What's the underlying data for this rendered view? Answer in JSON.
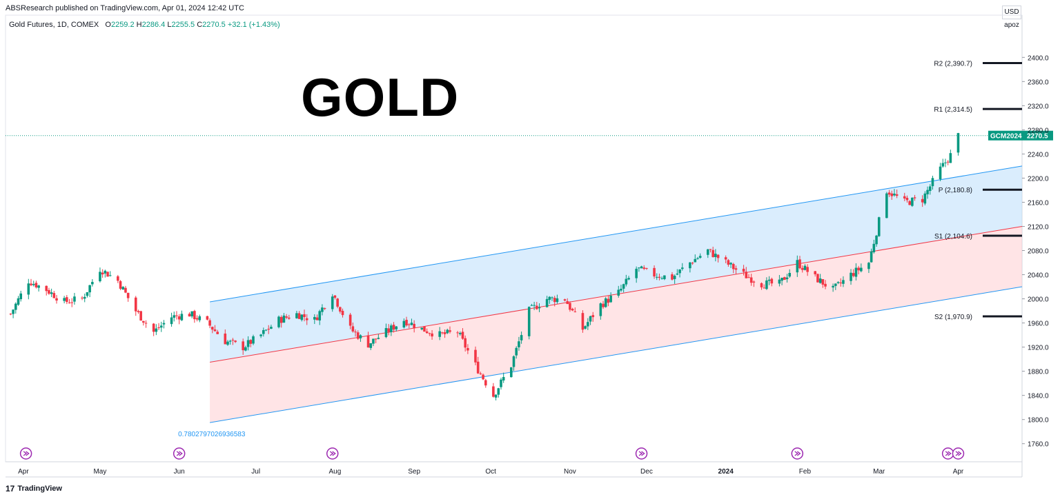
{
  "header": {
    "published": "ABSResearch published on TradingView.com, Apr 01, 2024 12:42 UTC",
    "symbol": "Gold Futures, 1D, COMEX",
    "o_label": "O",
    "o_value": "2259.2",
    "h_label": "H",
    "h_value": "2286.4",
    "l_label": "L",
    "l_value": "2255.5",
    "c_label": "C",
    "c_value": "2270.5",
    "change": "+32.1 (+1.43%)"
  },
  "overlay_title": "GOLD",
  "currency": "USD",
  "unit": "apoz",
  "footer": {
    "logo": "TradingView"
  },
  "colors": {
    "up": "#089981",
    "down": "#f23645",
    "channel_line": "#2196f3",
    "median_line": "#f23645",
    "upper_fill": "#bbdefb",
    "lower_fill": "#ffcdd2"
  },
  "chart_data": {
    "type": "candlestick",
    "symbol": "GCM2024",
    "last_price": "2270.5",
    "ylim": [
      1730,
      2470
    ],
    "y_ticks": [
      "2400.0",
      "2360.0",
      "2320.0",
      "2280.0",
      "2240.0",
      "2200.0",
      "2160.0",
      "2120.0",
      "2080.0",
      "2040.0",
      "2000.0",
      "1960.0",
      "1920.0",
      "1880.0",
      "1840.0",
      "1800.0",
      "1760.0"
    ],
    "x_range": [
      "2023-03-25",
      "2024-04-26"
    ],
    "x_ticks": [
      {
        "date": "2023-04-01",
        "label": "Apr"
      },
      {
        "date": "2023-05-01",
        "label": "May"
      },
      {
        "date": "2023-06-01",
        "label": "Jun"
      },
      {
        "date": "2023-07-01",
        "label": "Jul"
      },
      {
        "date": "2023-08-01",
        "label": "Aug"
      },
      {
        "date": "2023-09-01",
        "label": "Sep"
      },
      {
        "date": "2023-10-01",
        "label": "Oct"
      },
      {
        "date": "2023-11-01",
        "label": "Nov"
      },
      {
        "date": "2023-12-01",
        "label": "Dec"
      },
      {
        "date": "2024-01-01",
        "label": "2024"
      },
      {
        "date": "2024-02-01",
        "label": "Feb"
      },
      {
        "date": "2024-03-01",
        "label": "Mar"
      },
      {
        "date": "2024-04-01",
        "label": "Apr"
      }
    ],
    "pivots": [
      {
        "name": "R2",
        "value": 2390.7,
        "label": "R2 (2,390.7)"
      },
      {
        "name": "R1",
        "value": 2314.5,
        "label": "R1 (2,314.5)"
      },
      {
        "name": "P",
        "value": 2180.8,
        "label": "P (2,180.8)"
      },
      {
        "name": "S1",
        "value": 2104.6,
        "label": "S1 (2,104.6)"
      },
      {
        "name": "S2",
        "value": 1970.9,
        "label": "S2 (1,970.9)"
      }
    ],
    "channel": {
      "start_date": "2023-06-13",
      "end_date": "2024-04-26",
      "upper": [
        1995,
        2220
      ],
      "median": [
        1895,
        2120
      ],
      "lower": [
        1795,
        2020
      ],
      "label": "0.7802797026936583"
    },
    "events": [
      "2023-04-02",
      "2023-06-01",
      "2023-07-31",
      "2023-11-29",
      "2024-01-29",
      "2024-03-28",
      "2024-04-01"
    ],
    "closes": [
      [
        "2023-03-27",
        1975
      ],
      [
        "2023-04-03",
        2030
      ],
      [
        "2023-04-10",
        2015
      ],
      [
        "2023-04-17",
        1995
      ],
      [
        "2023-04-24",
        2000
      ],
      [
        "2023-05-01",
        2050
      ],
      [
        "2023-05-08",
        2030
      ],
      [
        "2023-05-15",
        1980
      ],
      [
        "2023-05-22",
        1945
      ],
      [
        "2023-05-29",
        1970
      ],
      [
        "2023-06-05",
        1975
      ],
      [
        "2023-06-12",
        1960
      ],
      [
        "2023-06-19",
        1930
      ],
      [
        "2023-06-26",
        1920
      ],
      [
        "2023-07-03",
        1940
      ],
      [
        "2023-07-10",
        1965
      ],
      [
        "2023-07-17",
        1975
      ],
      [
        "2023-07-24",
        1965
      ],
      [
        "2023-07-31",
        2010
      ],
      [
        "2023-08-07",
        1950
      ],
      [
        "2023-08-14",
        1925
      ],
      [
        "2023-08-21",
        1945
      ],
      [
        "2023-08-28",
        1965
      ],
      [
        "2023-09-04",
        1950
      ],
      [
        "2023-09-11",
        1940
      ],
      [
        "2023-09-18",
        1945
      ],
      [
        "2023-09-25",
        1890
      ],
      [
        "2023-10-02",
        1840
      ],
      [
        "2023-10-09",
        1890
      ],
      [
        "2023-10-16",
        1980
      ],
      [
        "2023-10-23",
        2000
      ],
      [
        "2023-10-30",
        2000
      ],
      [
        "2023-11-06",
        1950
      ],
      [
        "2023-11-13",
        1990
      ],
      [
        "2023-11-20",
        2010
      ],
      [
        "2023-11-27",
        2050
      ],
      [
        "2023-12-04",
        2040
      ],
      [
        "2023-12-11",
        2035
      ],
      [
        "2023-12-18",
        2060
      ],
      [
        "2023-12-25",
        2080
      ],
      [
        "2024-01-01",
        2060
      ],
      [
        "2024-01-08",
        2040
      ],
      [
        "2024-01-15",
        2025
      ],
      [
        "2024-01-22",
        2025
      ],
      [
        "2024-01-29",
        2060
      ],
      [
        "2024-02-05",
        2035
      ],
      [
        "2024-02-12",
        2015
      ],
      [
        "2024-02-19",
        2040
      ],
      [
        "2024-02-26",
        2060
      ],
      [
        "2024-03-04",
        2180
      ],
      [
        "2024-03-11",
        2160
      ],
      [
        "2024-03-18",
        2165
      ],
      [
        "2024-03-25",
        2215
      ],
      [
        "2024-03-29",
        2238
      ],
      [
        "2024-04-01",
        2270.5
      ]
    ]
  }
}
